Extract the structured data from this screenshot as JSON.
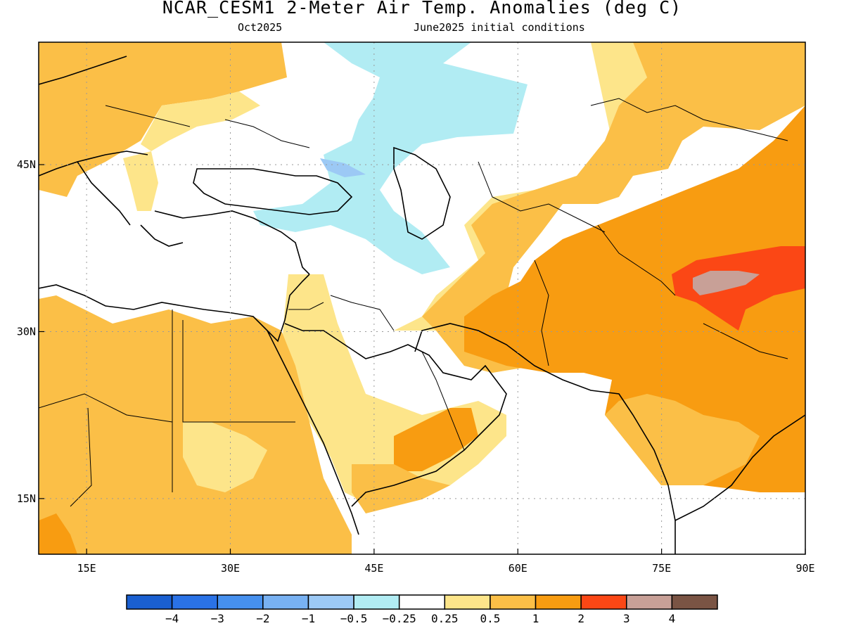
{
  "title": "NCAR_CESM1 2-Meter Air Temp. Anomalies (deg C)",
  "subtitle_left": "Oct2025",
  "subtitle_right": "June2025 initial conditions",
  "map": {
    "lon_range": [
      10,
      90
    ],
    "lat_range": [
      10,
      56
    ],
    "x_ticks": [
      {
        "lon": 15,
        "label": "15E"
      },
      {
        "lon": 30,
        "label": "30E"
      },
      {
        "lon": 45,
        "label": "45E"
      },
      {
        "lon": 60,
        "label": "60E"
      },
      {
        "lon": 75,
        "label": "75E"
      },
      {
        "lon": 90,
        "label": "90E"
      }
    ],
    "y_ticks": [
      {
        "lat": 15,
        "label": "15N"
      },
      {
        "lat": 30,
        "label": "30N"
      },
      {
        "lat": 45,
        "label": "45N"
      }
    ],
    "grid": "dotted"
  },
  "colorbar": {
    "colors": [
      "#1a5fd0",
      "#2a72e6",
      "#4690ee",
      "#78b1f2",
      "#9cc9f5",
      "#b1ecf3",
      "#ffffff",
      "#fde58a",
      "#fbbf47",
      "#f89c11",
      "#fb4715",
      "#c8a097",
      "#7a5444"
    ],
    "labels": [
      "−4",
      "−3",
      "−2",
      "−1",
      "−0.5",
      "−0.25",
      "0.25",
      "0.5",
      "1",
      "2",
      "3",
      "4"
    ]
  },
  "colors": {
    "weak_cool": "#b1ecf3",
    "cool": "#9cc9f5",
    "warm_025": "#fde58a",
    "warm_05": "#fbbf47",
    "warm_1": "#f89c11",
    "warm_2": "#fb4715",
    "warm_3": "#c8a097",
    "land_outline": "#000000"
  }
}
